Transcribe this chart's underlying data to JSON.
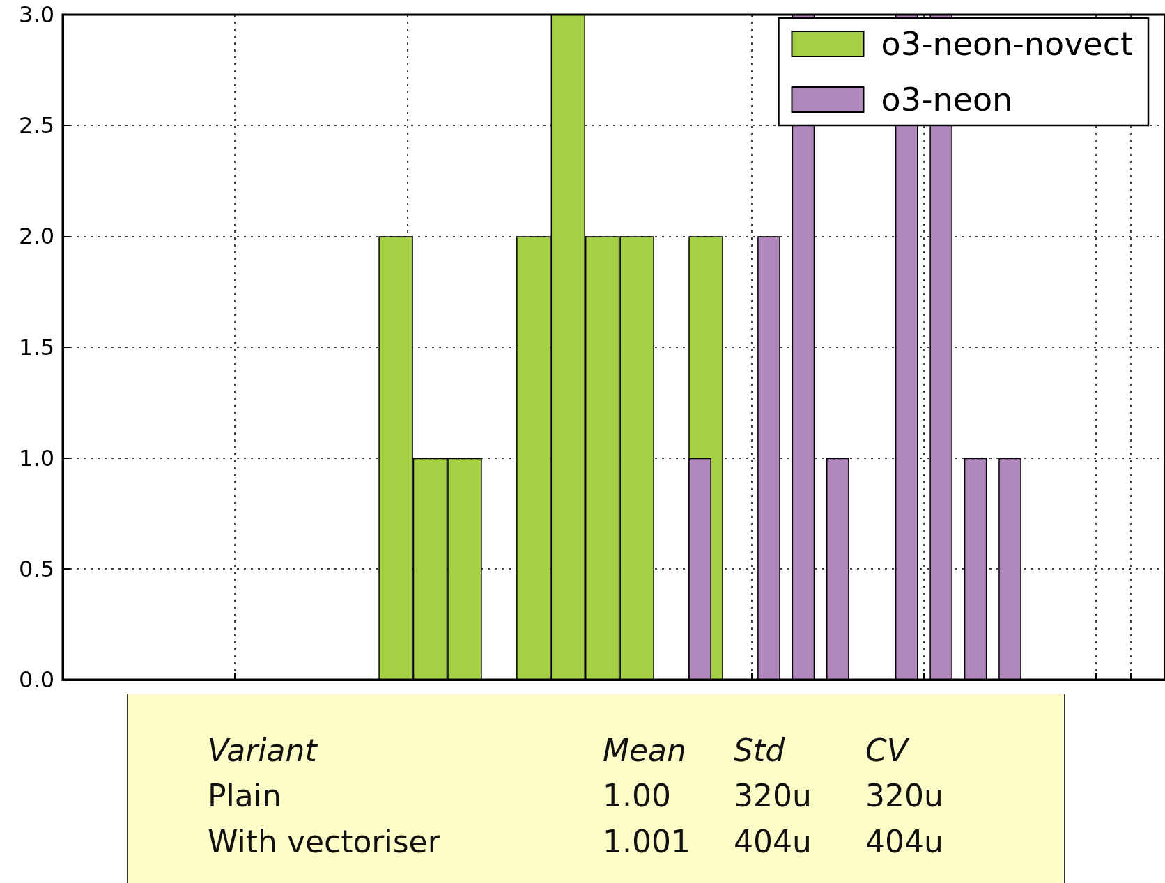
{
  "chart_data": {
    "type": "bar",
    "categories": [
      null,
      null,
      null,
      null,
      null,
      null,
      null,
      null,
      null,
      null,
      null,
      null,
      null,
      null,
      null,
      null,
      null,
      null,
      null,
      null,
      null,
      null,
      null,
      null,
      null,
      null,
      null,
      null,
      null,
      null,
      null,
      null
    ],
    "series": [
      {
        "name": "o3-neon-novect",
        "color": "#a5cf44",
        "values": [
          null,
          null,
          null,
          null,
          null,
          null,
          null,
          null,
          null,
          2,
          1,
          1,
          0,
          2,
          3,
          2,
          2,
          0,
          2,
          null,
          null,
          null,
          null,
          null,
          null,
          null,
          null,
          null,
          null,
          null,
          null,
          null
        ]
      },
      {
        "name": "o3-neon",
        "color": "#b088bb",
        "values": [
          null,
          null,
          null,
          null,
          null,
          null,
          null,
          null,
          null,
          null,
          null,
          null,
          null,
          null,
          null,
          null,
          null,
          null,
          1,
          0,
          2,
          3,
          1,
          0,
          3,
          3,
          1,
          1,
          null,
          null,
          null,
          null
        ]
      }
    ],
    "ylim": [
      0,
      3
    ],
    "yticks": [
      {
        "value": 0,
        "label": "0.0"
      },
      {
        "value": 0.5,
        "label": "0.5"
      },
      {
        "value": 1,
        "label": "1.0"
      },
      {
        "value": 1.5,
        "label": "1.5"
      },
      {
        "value": 2,
        "label": "2.0"
      },
      {
        "value": 2.5,
        "label": "2.5"
      },
      {
        "value": 3,
        "label": "3.0"
      }
    ],
    "tick_labels": "y",
    "grid": true,
    "legend": "top right",
    "annotations": [
      "Variant",
      "Mean",
      "Std",
      "CV",
      "Plain",
      "1.00",
      "320u",
      "320u",
      "With vectoriser",
      "1.001",
      "404u",
      "404u"
    ]
  }
}
